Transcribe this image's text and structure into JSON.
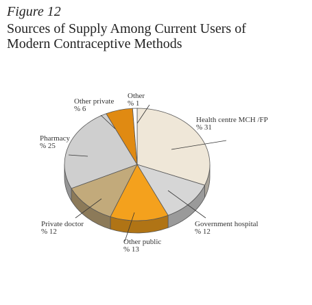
{
  "figure_label": "Figure 12",
  "title_line1": "Sources of Supply Among Current Users of",
  "title_line2": "Modern Contraceptive Methods",
  "chart_data": {
    "type": "pie",
    "title": "Sources of Supply Among Current Users of Modern Contraceptive Methods",
    "value_prefix": "% ",
    "slices": [
      {
        "label": "Health centre MCH /FP",
        "value": 31,
        "color": "#efe7d8"
      },
      {
        "label": "Government hospital",
        "value": 12,
        "color": "#d6d6d6"
      },
      {
        "label": "Other public",
        "value": 13,
        "color": "#f4a11d"
      },
      {
        "label": "Private doctor",
        "value": 12,
        "color": "#c2aa7b"
      },
      {
        "label": "Pharmacy",
        "value": 25,
        "color": "#cfcfcf"
      },
      {
        "label": "Other private",
        "value": 6,
        "color": "#e08a12"
      },
      {
        "label": "Other",
        "value": 1,
        "color": "#ffffff"
      }
    ]
  }
}
